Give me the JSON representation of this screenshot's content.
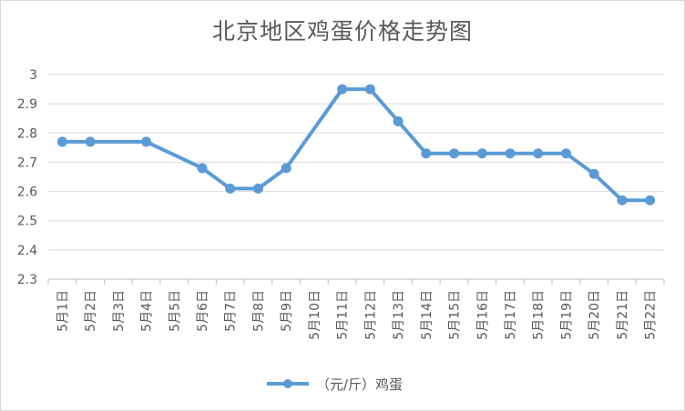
{
  "chart_data": {
    "type": "line",
    "title": "北京地区鸡蛋价格走势图",
    "xlabel": "",
    "ylabel": "",
    "categories": [
      "5月1日",
      "5月2日",
      "5月3日",
      "5月4日",
      "5月5日",
      "5月6日",
      "5月7日",
      "5月8日",
      "5月9日",
      "5月10日",
      "5月11日",
      "5月12日",
      "5月13日",
      "5月14日",
      "5月15日",
      "5月16日",
      "5月17日",
      "5月18日",
      "5月19日",
      "5月20日",
      "5月21日",
      "5月22日"
    ],
    "series": [
      {
        "name": "（元/斤）鸡蛋",
        "color": "#5b9bd5",
        "values": [
          2.77,
          2.77,
          null,
          2.77,
          null,
          2.68,
          2.61,
          2.61,
          2.68,
          null,
          2.95,
          2.95,
          2.84,
          2.73,
          2.73,
          2.73,
          2.73,
          2.73,
          2.73,
          2.66,
          2.57,
          2.57
        ]
      }
    ],
    "ylim": [
      2.3,
      3.0
    ],
    "yticks": [
      "2.3",
      "2.4",
      "2.5",
      "2.6",
      "2.7",
      "2.8",
      "2.9",
      "3"
    ],
    "grid": true,
    "legend": "bottom"
  }
}
